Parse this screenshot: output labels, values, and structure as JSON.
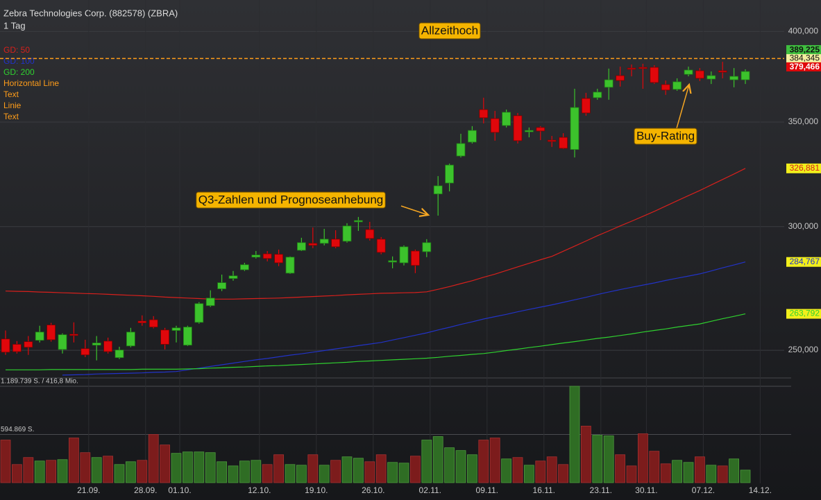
{
  "chart_data": {
    "type": "candlestick",
    "title": "Zebra Technologies Corp. (882578) (ZBRA)",
    "subtitle": "1 Tag",
    "categories": [
      null,
      null,
      null,
      null,
      null,
      null,
      null,
      "21.09.",
      null,
      null,
      null,
      null,
      "28.09.",
      null,
      null,
      "01.10.",
      null,
      null,
      null,
      null,
      null,
      null,
      "12.10.",
      null,
      null,
      null,
      null,
      "19.10.",
      null,
      null,
      null,
      null,
      "26.10.",
      null,
      null,
      null,
      null,
      "02.11.",
      null,
      null,
      null,
      null,
      "09.11.",
      null,
      null,
      null,
      null,
      "16.11.",
      null,
      null,
      null,
      null,
      "23.11.",
      null,
      null,
      null,
      "30.11.",
      null,
      null,
      null,
      null,
      "07.12.",
      null,
      null,
      null,
      null,
      "14.12."
    ],
    "open": [
      254200,
      252200,
      253200,
      253700,
      259500,
      250300,
      256000,
      250600,
      251900,
      253400,
      247300,
      251600,
      261000,
      261500,
      257600,
      257400,
      251900,
      260500,
      267000,
      273700,
      277900,
      281500,
      286800,
      288200,
      288000,
      280100,
      289700,
      292700,
      292700,
      294500,
      293600,
      302100,
      298700,
      294500,
      284700,
      284400,
      289400,
      289100,
      314800,
      319900,
      332900,
      339800,
      356500,
      351800,
      348200,
      353300,
      345000,
      347200,
      340800,
      342200,
      336100,
      362400,
      362800,
      368400,
      374800,
      379000,
      379400,
      379400,
      369900,
      367300,
      375500,
      377500,
      372900,
      377500,
      372500,
      372500,
      null
    ],
    "high": [
      257400,
      253400,
      255300,
      259200,
      260300,
      256300,
      260500,
      253900,
      255300,
      254700,
      251300,
      258400,
      263200,
      262900,
      258400,
      259200,
      259200,
      268400,
      273100,
      279500,
      281000,
      284400,
      289400,
      289400,
      290000,
      287100,
      295100,
      299600,
      299000,
      298400,
      301500,
      304300,
      302100,
      295400,
      287100,
      291800,
      290000,
      294500,
      323200,
      329200,
      344000,
      347900,
      362800,
      355800,
      356500,
      354700,
      347200,
      347900,
      342900,
      344300,
      367600,
      365400,
      367600,
      378700,
      379800,
      381000,
      381400,
      380600,
      372100,
      373300,
      379800,
      379000,
      377100,
      382500,
      379000,
      378300,
      null
    ],
    "low": [
      248300,
      248800,
      248300,
      252900,
      253200,
      248800,
      252900,
      247500,
      246300,
      248800,
      246800,
      251100,
      259200,
      258200,
      250300,
      252900,
      251600,
      260000,
      266500,
      272800,
      277000,
      281000,
      286200,
      285000,
      283000,
      279800,
      289400,
      290600,
      291800,
      290600,
      293000,
      298100,
      293900,
      288000,
      282100,
      283300,
      280100,
      286800,
      304900,
      316000,
      332200,
      339100,
      349300,
      340500,
      347200,
      339100,
      342200,
      340800,
      337400,
      336400,
      332200,
      353300,
      361700,
      361700,
      368800,
      374400,
      367600,
      370200,
      364300,
      366500,
      374400,
      371800,
      370200,
      373300,
      368400,
      370200,
      null
    ],
    "close": [
      249300,
      249500,
      251100,
      256800,
      253900,
      255800,
      255500,
      248300,
      252700,
      249500,
      250100,
      256800,
      260300,
      258700,
      252200,
      258400,
      258700,
      267800,
      270000,
      276200,
      279000,
      283600,
      287700,
      286200,
      284400,
      286800,
      293000,
      291800,
      294500,
      291200,
      300300,
      302700,
      294800,
      288800,
      285300,
      291200,
      283300,
      293000,
      318600,
      328500,
      339100,
      345700,
      352200,
      344700,
      355100,
      340500,
      345700,
      345400,
      340100,
      336700,
      357600,
      354700,
      365800,
      372500,
      372100,
      378300,
      378700,
      371000,
      366900,
      371400,
      377900,
      373300,
      374800,
      376700,
      374400,
      377100,
      null
    ],
    "colors": {
      "up": "#3cc22c",
      "down": "#e0070b",
      "volume_up": "#2f6d24",
      "volume_down": "#7c1c1c"
    },
    "ylim": [
      240000,
      419000
    ],
    "log_scale": true,
    "grid": true,
    "yticks": [
      {
        "value": 250000,
        "label": "250,000"
      },
      {
        "value": 300000,
        "label": "300,000"
      },
      {
        "value": 350000,
        "label": "350,000"
      },
      {
        "value": 400000,
        "label": "400,000"
      }
    ],
    "series": [
      {
        "name": "GD: 50",
        "color": "#d8201c",
        "end_label": "326,881",
        "values": [
          272800,
          272700,
          272600,
          272400,
          272300,
          272100,
          272000,
          271800,
          271700,
          271500,
          271300,
          271100,
          270900,
          270700,
          270400,
          270200,
          270000,
          269800,
          269600,
          269600,
          269600,
          269700,
          269800,
          269900,
          270000,
          270200,
          270400,
          270600,
          270800,
          271000,
          271300,
          271500,
          271700,
          271900,
          272000,
          272100,
          272200,
          272500,
          273500,
          274600,
          275800,
          277000,
          278400,
          279700,
          281200,
          282700,
          284200,
          285700,
          287100,
          289300,
          291500,
          293700,
          296000,
          298100,
          300300,
          302400,
          304600,
          306800,
          309200,
          311600,
          314000,
          316400,
          319000,
          321600,
          324200,
          326881,
          null
        ]
      },
      {
        "name": "GD: 100",
        "color": "#2233c8",
        "end_label": "284,767",
        "values": [
          null,
          null,
          null,
          null,
          null,
          241000,
          241100,
          241200,
          241400,
          241500,
          241600,
          241700,
          241800,
          242000,
          242100,
          242300,
          242900,
          243500,
          244100,
          244700,
          245300,
          245900,
          246500,
          247000,
          247600,
          248200,
          248700,
          249300,
          249900,
          250500,
          251100,
          251700,
          252300,
          252900,
          253800,
          254700,
          255600,
          256500,
          257600,
          258600,
          259700,
          260700,
          261800,
          262700,
          263600,
          264600,
          265500,
          266400,
          267300,
          268300,
          269300,
          270300,
          271400,
          272400,
          273400,
          274300,
          275200,
          276100,
          277100,
          278000,
          278900,
          279800,
          281000,
          282300,
          283500,
          284767,
          null
        ]
      },
      {
        "name": "GD: 200",
        "color": "#2fd12f",
        "end_label": "263,792",
        "values": [
          242900,
          242900,
          242900,
          242900,
          243000,
          243000,
          243000,
          243000,
          243000,
          243000,
          243000,
          243000,
          243100,
          243100,
          243100,
          243100,
          243200,
          243300,
          243500,
          243600,
          243800,
          243900,
          244100,
          244300,
          244400,
          244600,
          244800,
          245000,
          245200,
          245400,
          245600,
          245900,
          246100,
          246300,
          246500,
          246700,
          246900,
          247100,
          247400,
          247800,
          248100,
          248500,
          248800,
          249300,
          249900,
          250400,
          251000,
          251500,
          252100,
          252700,
          253200,
          253800,
          254400,
          254900,
          255500,
          256100,
          256800,
          257400,
          258000,
          258700,
          259300,
          259900,
          260900,
          261900,
          262800,
          263792,
          null
        ]
      }
    ],
    "legend_extra": [
      "Horizontal Line",
      "Text",
      "Linie",
      "Text"
    ],
    "legend_extra_color": "#ff9d1a",
    "horizontal_line": {
      "value": 384345,
      "label": "384,345",
      "color": "#ff9d1a"
    },
    "price_labels": [
      {
        "value": 389225,
        "label": "389,225",
        "color": "#3fbf3f"
      },
      {
        "value": 379466,
        "label": "379,466",
        "color": "#e0070b"
      }
    ],
    "annotations": [
      "Allzeithoch",
      "Q3-Zahlen und Prognoseanhebung",
      "Buy-Rating"
    ],
    "volume": {
      "values": [
        525900,
        224100,
        310400,
        267300,
        275900,
        284500,
        551700,
        370700,
        310400,
        327600,
        224100,
        258600,
        275900,
        594800,
        465500,
        362100,
        379300,
        379300,
        370700,
        258600,
        206900,
        267300,
        275900,
        224100,
        344800,
        224100,
        215500,
        344800,
        215500,
        275900,
        319000,
        301700,
        258600,
        344800,
        250000,
        241400,
        327600,
        525900,
        569000,
        431000,
        396600,
        344800,
        525900,
        551700,
        293100,
        310400,
        215500,
        267300,
        319000,
        224100,
        1189739,
        698300,
        586200,
        577600,
        344800,
        206900,
        603500,
        387900,
        232800,
        275900,
        250000,
        319000,
        215500,
        206900,
        293100,
        155200,
        null
      ],
      "ylim": [
        0,
        1189739
      ],
      "yticks": [
        {
          "value": 1189739,
          "label": "1.189.739 S. / 416,8 Mio."
        },
        {
          "value": 594869,
          "label": "594.869 S."
        }
      ]
    }
  }
}
